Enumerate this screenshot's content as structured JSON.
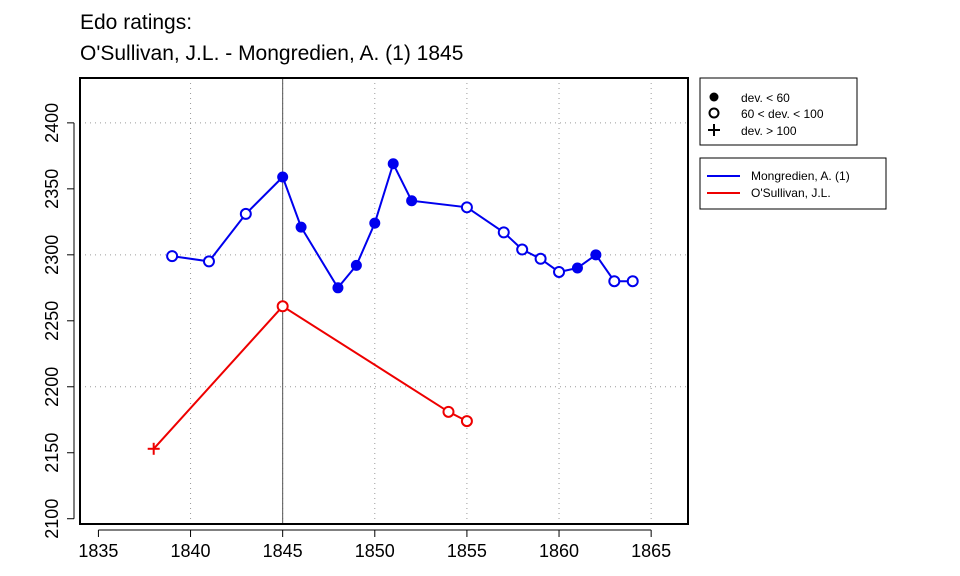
{
  "chart_data": {
    "type": "line",
    "title_lines": [
      "Edo ratings:",
      "O'Sullivan, J.L. - Mongredien, A. (1) 1845"
    ],
    "xlabel": "",
    "ylabel": "",
    "xlim": [
      1834,
      1867
    ],
    "ylim": [
      2096,
      2434
    ],
    "x_ticks": [
      1835,
      1840,
      1845,
      1850,
      1855,
      1860,
      1865
    ],
    "y_ticks": [
      2100,
      2150,
      2200,
      2250,
      2300,
      2350,
      2400
    ],
    "grid": "dotted",
    "grid_x": [
      1840,
      1845,
      1850,
      1855,
      1860,
      1865
    ],
    "grid_y": [
      2200,
      2300,
      2400
    ],
    "marker_line_x": 1845,
    "marker_legend": {
      "position": "top-right",
      "entries": [
        {
          "symbol": "filled-circle",
          "label": "dev. < 60"
        },
        {
          "symbol": "open-circle",
          "label": "60 < dev. < 100"
        },
        {
          "symbol": "plus",
          "label": "dev. > 100"
        }
      ]
    },
    "series_legend": {
      "position": "right",
      "entries": [
        {
          "label": "Mongredien, A. (1)",
          "color": "#0000ee"
        },
        {
          "label": "O'Sullivan, J.L.",
          "color": "#ee0000"
        }
      ]
    },
    "series": [
      {
        "name": "Mongredien, A. (1)",
        "color": "#0000ee",
        "points": [
          {
            "x": 1839,
            "y": 2299,
            "marker": "open-circle"
          },
          {
            "x": 1841,
            "y": 2295,
            "marker": "open-circle"
          },
          {
            "x": 1843,
            "y": 2331,
            "marker": "open-circle"
          },
          {
            "x": 1845,
            "y": 2359,
            "marker": "filled-circle"
          },
          {
            "x": 1846,
            "y": 2321,
            "marker": "filled-circle"
          },
          {
            "x": 1848,
            "y": 2275,
            "marker": "filled-circle"
          },
          {
            "x": 1849,
            "y": 2292,
            "marker": "filled-circle"
          },
          {
            "x": 1850,
            "y": 2324,
            "marker": "filled-circle"
          },
          {
            "x": 1851,
            "y": 2369,
            "marker": "filled-circle"
          },
          {
            "x": 1852,
            "y": 2341,
            "marker": "filled-circle"
          },
          {
            "x": 1855,
            "y": 2336,
            "marker": "open-circle"
          },
          {
            "x": 1857,
            "y": 2317,
            "marker": "open-circle"
          },
          {
            "x": 1858,
            "y": 2304,
            "marker": "open-circle"
          },
          {
            "x": 1859,
            "y": 2297,
            "marker": "open-circle"
          },
          {
            "x": 1860,
            "y": 2287,
            "marker": "open-circle"
          },
          {
            "x": 1861,
            "y": 2290,
            "marker": "filled-circle"
          },
          {
            "x": 1862,
            "y": 2300,
            "marker": "filled-circle"
          },
          {
            "x": 1863,
            "y": 2280,
            "marker": "open-circle"
          },
          {
            "x": 1864,
            "y": 2280,
            "marker": "open-circle"
          }
        ]
      },
      {
        "name": "O'Sullivan, J.L.",
        "color": "#ee0000",
        "points": [
          {
            "x": 1838,
            "y": 2153,
            "marker": "plus"
          },
          {
            "x": 1845,
            "y": 2261,
            "marker": "open-circle"
          },
          {
            "x": 1854,
            "y": 2181,
            "marker": "open-circle"
          },
          {
            "x": 1855,
            "y": 2174,
            "marker": "open-circle"
          }
        ]
      }
    ]
  }
}
